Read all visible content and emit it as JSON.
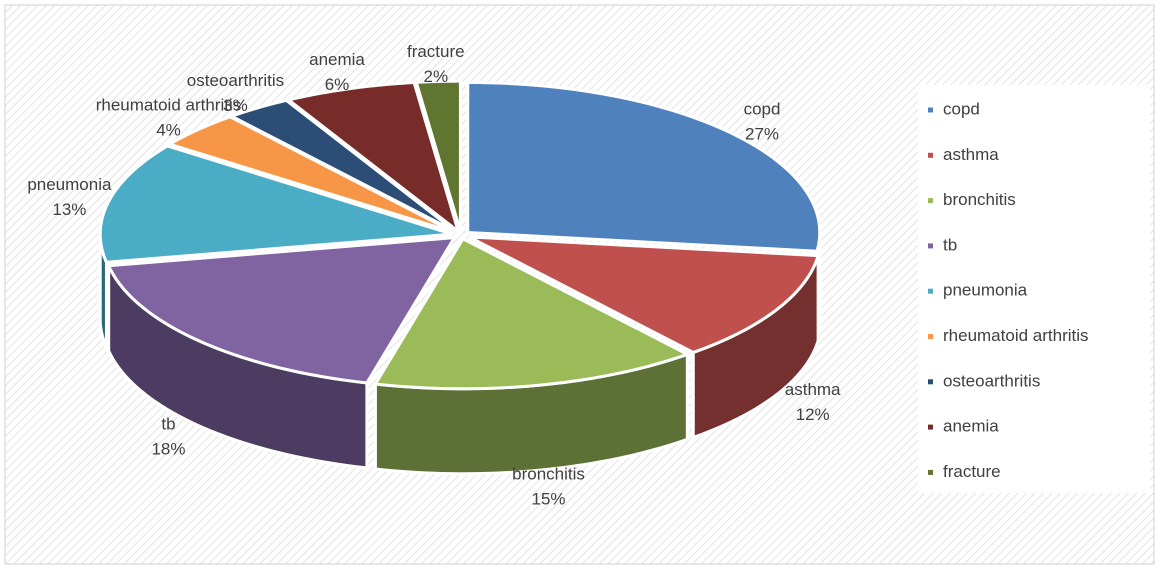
{
  "chart_data": {
    "type": "pie",
    "categories": [
      "copd",
      "asthma",
      "bronchitis",
      "tb",
      "pneumonia",
      "rheumatoid arthritis",
      "osteoarthritis",
      "anemia",
      "fracture"
    ],
    "values": [
      27,
      12,
      15,
      18,
      13,
      4,
      3,
      6,
      2
    ],
    "value_labels": [
      "27%",
      "12%",
      "15%",
      "18%",
      "13%",
      "4%",
      "3%",
      "6%",
      "2%"
    ],
    "colors": [
      "#4f81bd",
      "#c0504d",
      "#9bbb59",
      "#8064a2",
      "#4bacc6",
      "#f79646",
      "#2c4d75",
      "#772c2a",
      "#5f7530"
    ],
    "legend": "right"
  }
}
